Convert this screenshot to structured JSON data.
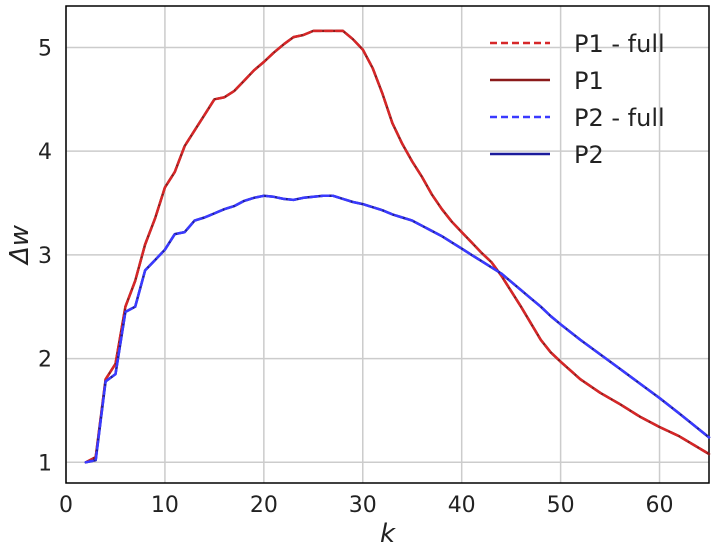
{
  "chart_data": {
    "type": "line",
    "xlabel": "k",
    "ylabel": "Δw",
    "xlim": [
      0,
      65
    ],
    "ylim": [
      0.8,
      5.4
    ],
    "xticks": [
      0,
      10,
      20,
      30,
      40,
      50,
      60
    ],
    "yticks": [
      1,
      2,
      3,
      4,
      5
    ],
    "grid": true,
    "legend_position": "top-right",
    "series": [
      {
        "name": "P1 - full",
        "color": "#d62728",
        "dash": "dashed",
        "x": [
          2,
          3,
          4,
          5,
          6,
          7,
          8,
          9,
          10,
          11,
          12,
          13,
          14,
          15,
          16,
          17,
          18,
          19,
          20,
          21,
          22,
          23,
          24,
          25,
          26,
          27,
          28,
          29,
          30,
          31,
          32,
          33,
          34,
          35,
          36,
          37,
          38,
          39,
          40,
          41,
          42,
          43,
          44,
          45,
          46,
          47,
          48,
          49,
          50,
          52,
          54,
          56,
          58,
          60,
          62,
          65
        ],
        "y": [
          1.0,
          1.05,
          1.8,
          1.95,
          2.5,
          2.75,
          3.1,
          3.35,
          3.65,
          3.8,
          4.05,
          4.2,
          4.35,
          4.5,
          4.52,
          4.58,
          4.68,
          4.78,
          4.86,
          4.95,
          5.03,
          5.1,
          5.12,
          5.16,
          5.16,
          5.16,
          5.16,
          5.08,
          4.98,
          4.8,
          4.55,
          4.27,
          4.07,
          3.9,
          3.75,
          3.58,
          3.44,
          3.32,
          3.22,
          3.12,
          3.02,
          2.93,
          2.8,
          2.65,
          2.5,
          2.34,
          2.18,
          2.06,
          1.97,
          1.8,
          1.67,
          1.56,
          1.44,
          1.34,
          1.25,
          1.08
        ]
      },
      {
        "name": "P1",
        "color": "#8b1a1a",
        "dash": "solid",
        "x": [
          2,
          3,
          4,
          5,
          6,
          7,
          8,
          9,
          10,
          11,
          12,
          13,
          14,
          15,
          16,
          17,
          18,
          19,
          20,
          21,
          22,
          23,
          24,
          25,
          26,
          27,
          28,
          29,
          30,
          31,
          32,
          33,
          34,
          35,
          36,
          37,
          38,
          39,
          40,
          41,
          42,
          43,
          44,
          45,
          46,
          47,
          48,
          49,
          50,
          52,
          54,
          56,
          58,
          60,
          62,
          65
        ],
        "y": [
          1.0,
          1.05,
          1.8,
          1.95,
          2.5,
          2.75,
          3.1,
          3.35,
          3.65,
          3.8,
          4.05,
          4.2,
          4.35,
          4.5,
          4.52,
          4.58,
          4.68,
          4.78,
          4.86,
          4.95,
          5.03,
          5.1,
          5.12,
          5.16,
          5.16,
          5.16,
          5.16,
          5.08,
          4.98,
          4.8,
          4.55,
          4.27,
          4.07,
          3.9,
          3.75,
          3.58,
          3.44,
          3.32,
          3.22,
          3.12,
          3.02,
          2.93,
          2.8,
          2.65,
          2.5,
          2.34,
          2.18,
          2.06,
          1.97,
          1.8,
          1.67,
          1.56,
          1.44,
          1.34,
          1.25,
          1.08
        ]
      },
      {
        "name": "P2 - full",
        "color": "#3a3aff",
        "dash": "dashed",
        "x": [
          2,
          3,
          4,
          5,
          6,
          7,
          8,
          9,
          10,
          11,
          12,
          13,
          14,
          15,
          16,
          17,
          18,
          19,
          20,
          21,
          22,
          23,
          24,
          25,
          26,
          27,
          28,
          29,
          30,
          31,
          32,
          33,
          34,
          35,
          36,
          37,
          38,
          39,
          40,
          41,
          42,
          43,
          44,
          45,
          46,
          47,
          48,
          49,
          50,
          52,
          54,
          56,
          58,
          60,
          62,
          65
        ],
        "y": [
          1.0,
          1.02,
          1.78,
          1.85,
          2.45,
          2.5,
          2.85,
          2.95,
          3.05,
          3.2,
          3.22,
          3.33,
          3.36,
          3.4,
          3.44,
          3.47,
          3.52,
          3.55,
          3.57,
          3.56,
          3.54,
          3.53,
          3.55,
          3.56,
          3.57,
          3.57,
          3.54,
          3.51,
          3.49,
          3.46,
          3.43,
          3.39,
          3.36,
          3.33,
          3.28,
          3.23,
          3.18,
          3.12,
          3.06,
          3.0,
          2.94,
          2.88,
          2.82,
          2.74,
          2.66,
          2.58,
          2.5,
          2.41,
          2.33,
          2.18,
          2.04,
          1.9,
          1.76,
          1.62,
          1.47,
          1.24
        ]
      },
      {
        "name": "P2",
        "color": "#1c1c9c",
        "dash": "solid",
        "x": [
          2,
          3,
          4,
          5,
          6,
          7,
          8,
          9,
          10,
          11,
          12,
          13,
          14,
          15,
          16,
          17,
          18,
          19,
          20,
          21,
          22,
          23,
          24,
          25,
          26,
          27,
          28,
          29,
          30,
          31,
          32,
          33,
          34,
          35,
          36,
          37,
          38,
          39,
          40,
          41,
          42,
          43,
          44,
          45,
          46,
          47,
          48,
          49,
          50,
          52,
          54,
          56,
          58,
          60,
          62,
          65
        ],
        "y": [
          1.0,
          1.02,
          1.78,
          1.85,
          2.45,
          2.5,
          2.85,
          2.95,
          3.05,
          3.2,
          3.22,
          3.33,
          3.36,
          3.4,
          3.44,
          3.47,
          3.52,
          3.55,
          3.57,
          3.56,
          3.54,
          3.53,
          3.55,
          3.56,
          3.57,
          3.57,
          3.54,
          3.51,
          3.49,
          3.46,
          3.43,
          3.39,
          3.36,
          3.33,
          3.28,
          3.23,
          3.18,
          3.12,
          3.06,
          3.0,
          2.94,
          2.88,
          2.82,
          2.74,
          2.66,
          2.58,
          2.5,
          2.41,
          2.33,
          2.18,
          2.04,
          1.9,
          1.76,
          1.62,
          1.47,
          1.24
        ]
      }
    ]
  }
}
